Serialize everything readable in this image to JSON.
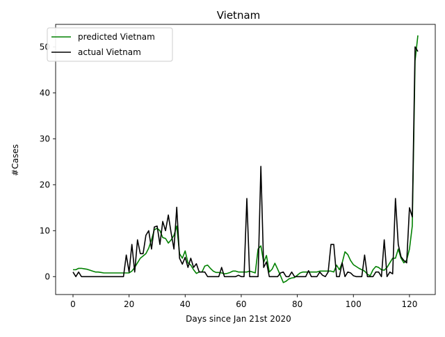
{
  "chart_data": {
    "type": "line",
    "title": "Vietnam",
    "xlabel": "Days since Jan 21st 2020",
    "ylabel": "#Cases",
    "xlim": [
      -6.2,
      129.2
    ],
    "ylim": [
      -3.9,
      54.9
    ],
    "xticks": [
      0,
      20,
      40,
      60,
      80,
      100,
      120
    ],
    "yticks": [
      0,
      10,
      20,
      30,
      40,
      50
    ],
    "grid": false,
    "legend_position": "upper-left",
    "series": [
      {
        "name": "predicted Vietnam",
        "color": "#008000",
        "points": [
          [
            0,
            1.5
          ],
          [
            1,
            1.5
          ],
          [
            2,
            1.8
          ],
          [
            3,
            1.8
          ],
          [
            4,
            1.7
          ],
          [
            5,
            1.6
          ],
          [
            6,
            1.4
          ],
          [
            7,
            1.2
          ],
          [
            8,
            1
          ],
          [
            9,
            1
          ],
          [
            10,
            0.9
          ],
          [
            11,
            0.8
          ],
          [
            12,
            0.8
          ],
          [
            13,
            0.8
          ],
          [
            14,
            0.8
          ],
          [
            15,
            0.8
          ],
          [
            16,
            0.8
          ],
          [
            17,
            0.8
          ],
          [
            18,
            0.8
          ],
          [
            19,
            0.8
          ],
          [
            20,
            0.8
          ],
          [
            21,
            1.2
          ],
          [
            22,
            2
          ],
          [
            23,
            3
          ],
          [
            24,
            4
          ],
          [
            25,
            4.5
          ],
          [
            26,
            5
          ],
          [
            27,
            6.2
          ],
          [
            28,
            8
          ],
          [
            29,
            10.2
          ],
          [
            30,
            10.5
          ],
          [
            31,
            10
          ],
          [
            32,
            8.5
          ],
          [
            33,
            8.3
          ],
          [
            34,
            7.3
          ],
          [
            35,
            8
          ],
          [
            36,
            9
          ],
          [
            37,
            11
          ],
          [
            38,
            5
          ],
          [
            39,
            4
          ],
          [
            40,
            5.6
          ],
          [
            41,
            3
          ],
          [
            42,
            2.5
          ],
          [
            43,
            1.5
          ],
          [
            44,
            0.7
          ],
          [
            45,
            1
          ],
          [
            46,
            1
          ],
          [
            47,
            2.3
          ],
          [
            48,
            2.5
          ],
          [
            49,
            1.8
          ],
          [
            50,
            1.2
          ],
          [
            51,
            0.9
          ],
          [
            52,
            0.9
          ],
          [
            53,
            0.8
          ],
          [
            54,
            0.6
          ],
          [
            55,
            0.7
          ],
          [
            56,
            0.9
          ],
          [
            57,
            1.2
          ],
          [
            58,
            1.2
          ],
          [
            59,
            1
          ],
          [
            60,
            1
          ],
          [
            61,
            1
          ],
          [
            62,
            1
          ],
          [
            63,
            1.2
          ],
          [
            64,
            1
          ],
          [
            65,
            0.8
          ],
          [
            66,
            6
          ],
          [
            67,
            6.7
          ],
          [
            68,
            3.1
          ],
          [
            69,
            4.6
          ],
          [
            70,
            1
          ],
          [
            71,
            1.6
          ],
          [
            72,
            2.9
          ],
          [
            73,
            1.6
          ],
          [
            74,
            0.2
          ],
          [
            75,
            -1.3
          ],
          [
            76,
            -1
          ],
          [
            77,
            -0.5
          ],
          [
            78,
            -0.3
          ],
          [
            79,
            -0.2
          ],
          [
            80,
            0.3
          ],
          [
            81,
            0.8
          ],
          [
            82,
            1
          ],
          [
            83,
            1
          ],
          [
            84,
            1
          ],
          [
            85,
            1
          ],
          [
            86,
            1
          ],
          [
            87,
            1
          ],
          [
            88,
            1.2
          ],
          [
            89,
            1.2
          ],
          [
            90,
            1.2
          ],
          [
            91,
            1.2
          ],
          [
            92,
            1.2
          ],
          [
            93,
            1
          ],
          [
            94,
            2.5
          ],
          [
            95,
            1.5
          ],
          [
            96,
            3
          ],
          [
            97,
            5.4
          ],
          [
            98,
            4.8
          ],
          [
            99,
            3.5
          ],
          [
            100,
            2.6
          ],
          [
            101,
            2.2
          ],
          [
            102,
            1.8
          ],
          [
            103,
            1.5
          ],
          [
            104,
            1.2
          ],
          [
            105,
            0.5
          ],
          [
            106,
            0.2
          ],
          [
            107,
            1.5
          ],
          [
            108,
            2.2
          ],
          [
            109,
            2
          ],
          [
            110,
            1.5
          ],
          [
            111,
            1.4
          ],
          [
            112,
            2
          ],
          [
            113,
            3
          ],
          [
            114,
            4
          ],
          [
            115,
            4
          ],
          [
            116,
            6
          ],
          [
            117,
            4
          ],
          [
            118,
            3
          ],
          [
            119,
            3.6
          ],
          [
            120,
            6
          ],
          [
            121,
            11
          ],
          [
            122,
            47
          ],
          [
            123,
            52.5
          ]
        ]
      },
      {
        "name": "actual Vietnam",
        "color": "#000000",
        "points": [
          [
            0,
            1
          ],
          [
            1,
            0
          ],
          [
            2,
            1
          ],
          [
            3,
            0
          ],
          [
            4,
            0
          ],
          [
            5,
            0
          ],
          [
            6,
            0
          ],
          [
            7,
            0
          ],
          [
            8,
            0
          ],
          [
            9,
            0
          ],
          [
            10,
            0
          ],
          [
            11,
            0
          ],
          [
            12,
            0
          ],
          [
            13,
            0
          ],
          [
            14,
            0
          ],
          [
            15,
            0
          ],
          [
            16,
            0
          ],
          [
            17,
            0
          ],
          [
            18,
            0
          ],
          [
            19,
            4.7
          ],
          [
            20,
            1
          ],
          [
            21,
            7
          ],
          [
            22,
            1
          ],
          [
            23,
            8
          ],
          [
            24,
            5
          ],
          [
            25,
            5
          ],
          [
            26,
            9
          ],
          [
            27,
            10
          ],
          [
            28,
            6
          ],
          [
            29,
            10.8
          ],
          [
            30,
            11
          ],
          [
            31,
            7
          ],
          [
            32,
            12
          ],
          [
            33,
            10
          ],
          [
            34,
            13.4
          ],
          [
            35,
            9.5
          ],
          [
            36,
            6
          ],
          [
            37,
            15.1
          ],
          [
            38,
            4
          ],
          [
            39,
            2.7
          ],
          [
            40,
            4.2
          ],
          [
            41,
            2
          ],
          [
            42,
            4
          ],
          [
            43,
            2
          ],
          [
            44,
            2.8
          ],
          [
            45,
            1
          ],
          [
            46,
            1
          ],
          [
            47,
            1
          ],
          [
            48,
            0
          ],
          [
            49,
            0
          ],
          [
            50,
            0
          ],
          [
            51,
            0
          ],
          [
            52,
            0
          ],
          [
            53,
            2
          ],
          [
            54,
            0
          ],
          [
            55,
            0
          ],
          [
            56,
            0
          ],
          [
            57,
            0
          ],
          [
            58,
            0
          ],
          [
            59,
            0.3
          ],
          [
            60,
            0
          ],
          [
            61,
            0
          ],
          [
            62,
            17
          ],
          [
            63,
            0
          ],
          [
            64,
            0
          ],
          [
            65,
            0
          ],
          [
            66,
            0
          ],
          [
            67,
            24
          ],
          [
            68,
            2
          ],
          [
            69,
            3.2
          ],
          [
            70,
            0
          ],
          [
            71,
            0
          ],
          [
            72,
            0
          ],
          [
            73,
            0
          ],
          [
            74,
            0.8
          ],
          [
            75,
            1
          ],
          [
            76,
            0
          ],
          [
            77,
            0
          ],
          [
            78,
            1
          ],
          [
            79,
            0
          ],
          [
            80,
            0
          ],
          [
            81,
            0
          ],
          [
            82,
            0
          ],
          [
            83,
            0
          ],
          [
            84,
            1.3
          ],
          [
            85,
            0
          ],
          [
            86,
            0
          ],
          [
            87,
            0
          ],
          [
            88,
            1
          ],
          [
            89,
            0.3
          ],
          [
            90,
            0
          ],
          [
            91,
            1
          ],
          [
            92,
            7
          ],
          [
            93,
            7
          ],
          [
            94,
            0
          ],
          [
            95,
            0
          ],
          [
            96,
            3
          ],
          [
            97,
            0
          ],
          [
            98,
            1
          ],
          [
            99,
            0.8
          ],
          [
            100,
            0.2
          ],
          [
            101,
            0
          ],
          [
            102,
            0
          ],
          [
            103,
            0
          ],
          [
            104,
            4.7
          ],
          [
            105,
            0
          ],
          [
            106,
            0
          ],
          [
            107,
            0
          ],
          [
            108,
            1
          ],
          [
            109,
            1
          ],
          [
            110,
            0
          ],
          [
            111,
            8
          ],
          [
            112,
            0
          ],
          [
            113,
            1
          ],
          [
            114,
            0.6
          ],
          [
            115,
            17
          ],
          [
            116,
            7
          ],
          [
            117,
            4.3
          ],
          [
            118,
            3.5
          ],
          [
            119,
            3
          ],
          [
            120,
            15
          ],
          [
            121,
            13
          ],
          [
            122,
            50
          ],
          [
            123,
            49
          ]
        ]
      }
    ]
  }
}
